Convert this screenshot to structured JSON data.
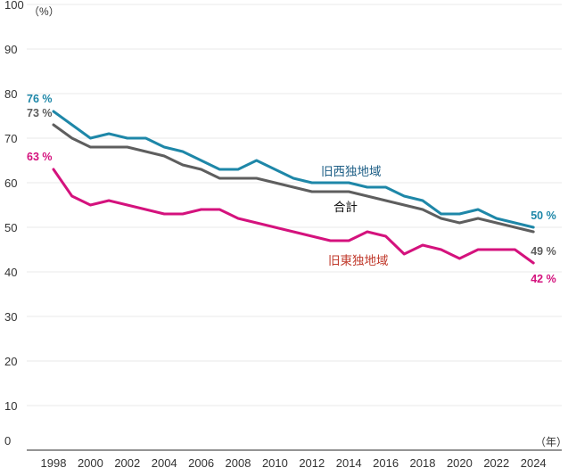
{
  "chart_data": {
    "type": "line",
    "title": "",
    "xlabel": "",
    "ylabel": "",
    "y_unit": "（%）",
    "x_unit": "（年）",
    "ylim": [
      0,
      100
    ],
    "xlim": [
      1996,
      2025
    ],
    "y_ticks": [
      0,
      10,
      20,
      30,
      40,
      50,
      60,
      70,
      80,
      90,
      100
    ],
    "x_ticks": [
      1998,
      2000,
      2002,
      2004,
      2006,
      2008,
      2010,
      2012,
      2014,
      2016,
      2018,
      2020,
      2022,
      2024
    ],
    "grid": true,
    "legend": "none",
    "series": [
      {
        "name": "旧西独地域",
        "color": "#1e87a8",
        "x": [
          1998,
          1999,
          2000,
          2001,
          2002,
          2003,
          2004,
          2005,
          2006,
          2007,
          2008,
          2009,
          2010,
          2011,
          2012,
          2013,
          2014,
          2015,
          2016,
          2017,
          2018,
          2019,
          2020,
          2021,
          2022,
          2023,
          2024
        ],
        "values": [
          76,
          73,
          70,
          71,
          70,
          70,
          68,
          67,
          65,
          63,
          63,
          65,
          63,
          61,
          60,
          60,
          60,
          59,
          59,
          57,
          56,
          53,
          53,
          54,
          52,
          51,
          50
        ],
        "start_label": "76 %",
        "end_label": "50 %"
      },
      {
        "name": "合計",
        "color": "#5e5e5e",
        "x": [
          1998,
          1999,
          2000,
          2001,
          2002,
          2003,
          2004,
          2005,
          2006,
          2007,
          2008,
          2009,
          2010,
          2011,
          2012,
          2013,
          2014,
          2015,
          2016,
          2017,
          2018,
          2019,
          2020,
          2021,
          2022,
          2023,
          2024
        ],
        "values": [
          73,
          70,
          68,
          68,
          68,
          67,
          66,
          64,
          63,
          61,
          61,
          61,
          60,
          59,
          58,
          58,
          58,
          57,
          56,
          55,
          54,
          52,
          51,
          52,
          51,
          50,
          49
        ],
        "start_label": "73 %",
        "end_label": "49 %"
      },
      {
        "name": "旧東独地域",
        "color": "#d4127d",
        "x": [
          1998,
          1999,
          2000,
          2001,
          2002,
          2003,
          2004,
          2005,
          2006,
          2007,
          2008,
          2009,
          2010,
          2011,
          2012,
          2013,
          2014,
          2015,
          2016,
          2017,
          2018,
          2019,
          2020,
          2021,
          2022,
          2023,
          2024
        ],
        "values": [
          63,
          57,
          55,
          56,
          55,
          54,
          53,
          53,
          54,
          54,
          52,
          51,
          50,
          49,
          48,
          47,
          47,
          49,
          48,
          44,
          46,
          45,
          43,
          45,
          45,
          45,
          42
        ],
        "start_label": "63 %",
        "end_label": "42 %"
      }
    ],
    "annotations": [
      {
        "text": "旧西独地域",
        "color": "#1e5f86"
      },
      {
        "text": "合計",
        "color": "#111111"
      },
      {
        "text": "旧東独地域",
        "color": "#c0392b"
      }
    ]
  }
}
